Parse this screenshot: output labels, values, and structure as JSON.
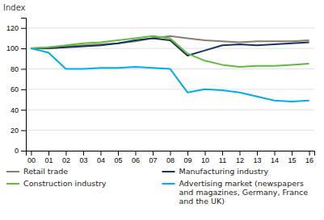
{
  "chart_data": {
    "type": "line",
    "ylabel": "Index",
    "x": [
      0,
      1,
      2,
      3,
      4,
      5,
      6,
      7,
      8,
      9,
      10,
      11,
      12,
      13,
      14,
      15,
      16
    ],
    "xlim": [
      -0.3,
      16.3
    ],
    "xticks": [
      {
        "value": 0,
        "label": "00"
      },
      {
        "value": 1,
        "label": "01"
      },
      {
        "value": 2,
        "label": "02"
      },
      {
        "value": 3,
        "label": "03"
      },
      {
        "value": 4,
        "label": "04"
      },
      {
        "value": 5,
        "label": "05"
      },
      {
        "value": 6,
        "label": "06"
      },
      {
        "value": 7,
        "label": "07"
      },
      {
        "value": 8,
        "label": "08"
      },
      {
        "value": 9,
        "label": "09"
      },
      {
        "value": 10,
        "label": "10"
      },
      {
        "value": 11,
        "label": "11"
      },
      {
        "value": 12,
        "label": "12"
      },
      {
        "value": 13,
        "label": "13"
      },
      {
        "value": 14,
        "label": "14"
      },
      {
        "value": 15,
        "label": "15"
      },
      {
        "value": 16,
        "label": "16"
      }
    ],
    "ylim": [
      0,
      130
    ],
    "yticks": [
      0,
      20,
      40,
      60,
      80,
      100,
      120
    ],
    "grid": true,
    "legend": "bottom",
    "series": [
      {
        "name": "Retail trade",
        "color": "#8c7c6e",
        "values": [
          100,
          101,
          102,
          103,
          104,
          105,
          107,
          110,
          112,
          110,
          108,
          107,
          106,
          107,
          107,
          107,
          108
        ]
      },
      {
        "name": "Manufacturing industry",
        "color": "#1a3260",
        "values": [
          100,
          100,
          101,
          102,
          103,
          105,
          108,
          110,
          108,
          93,
          98,
          103,
          104,
          103,
          104,
          105,
          106
        ]
      },
      {
        "name": "Construction industry",
        "color": "#5fbd3a",
        "values": [
          100,
          101,
          103,
          105,
          106,
          108,
          110,
          112,
          110,
          95,
          88,
          84,
          82,
          83,
          83,
          84,
          85
        ]
      },
      {
        "name": "Advertising market (newspapers\nand magazines, Germany, France\nand the UK)",
        "color": "#00adef",
        "values": [
          100,
          96,
          80,
          80,
          81,
          81,
          82,
          81,
          80,
          57,
          60,
          59,
          57,
          53,
          49,
          48,
          49
        ]
      }
    ]
  }
}
